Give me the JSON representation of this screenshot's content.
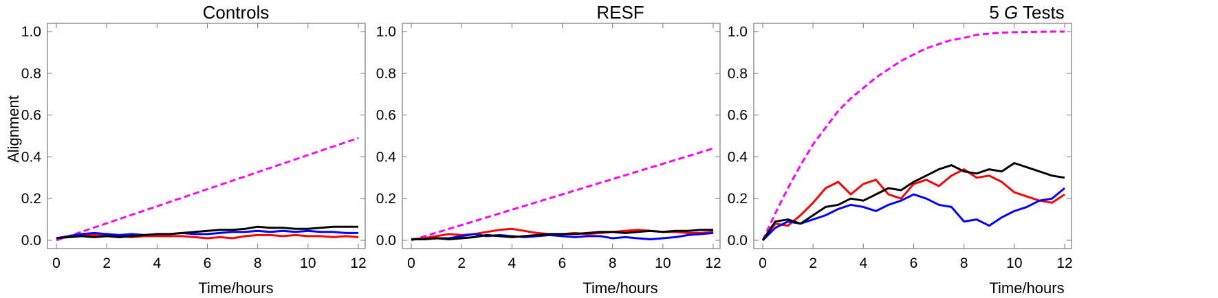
{
  "chart_data": [
    {
      "type": "line",
      "title": "Controls",
      "title_italic": "",
      "title_suffix": "",
      "xlabel": "Time/hours",
      "ylabel": "Alignment",
      "xlim": [
        0,
        12
      ],
      "ylim": [
        0,
        1.05
      ],
      "xticks": [
        0,
        2,
        4,
        6,
        8,
        10,
        12
      ],
      "yticks": [
        "0.0",
        "0.2",
        "0.4",
        "0.6",
        "0.8",
        "1.0"
      ],
      "grid": false,
      "series": [
        {
          "color": "#ff00ff",
          "style": "dashed",
          "x": [
            0,
            12
          ],
          "y": [
            0,
            0.49
          ]
        },
        {
          "color": "#ff0000",
          "style": "solid",
          "x": [
            0,
            0.5,
            1,
            1.5,
            2,
            2.5,
            3,
            3.5,
            4,
            4.5,
            5,
            5.5,
            6,
            6.5,
            7,
            7.5,
            8,
            8.5,
            9,
            9.5,
            10,
            10.5,
            11,
            11.5,
            12
          ],
          "y": [
            0.01,
            0.02,
            0.02,
            0.025,
            0.02,
            0.02,
            0.015,
            0.02,
            0.02,
            0.02,
            0.02,
            0.015,
            0.01,
            0.015,
            0.01,
            0.02,
            0.025,
            0.025,
            0.02,
            0.025,
            0.02,
            0.02,
            0.015,
            0.02,
            0.015
          ]
        },
        {
          "color": "#0000ff",
          "style": "solid",
          "x": [
            0,
            0.5,
            1,
            1.5,
            2,
            2.5,
            3,
            3.5,
            4,
            4.5,
            5,
            5.5,
            6,
            6.5,
            7,
            7.5,
            8,
            8.5,
            9,
            9.5,
            10,
            10.5,
            11,
            11.5,
            12
          ],
          "y": [
            0.01,
            0.02,
            0.03,
            0.035,
            0.03,
            0.025,
            0.03,
            0.025,
            0.03,
            0.03,
            0.035,
            0.03,
            0.03,
            0.035,
            0.04,
            0.04,
            0.045,
            0.04,
            0.045,
            0.04,
            0.045,
            0.04,
            0.04,
            0.035,
            0.035
          ]
        },
        {
          "color": "#000000",
          "style": "solid",
          "x": [
            0,
            0.5,
            1,
            1.5,
            2,
            2.5,
            3,
            3.5,
            4,
            4.5,
            5,
            5.5,
            6,
            6.5,
            7,
            7.5,
            8,
            8.5,
            9,
            9.5,
            10,
            10.5,
            11,
            11.5,
            12
          ],
          "y": [
            0.01,
            0.015,
            0.02,
            0.015,
            0.02,
            0.015,
            0.02,
            0.025,
            0.03,
            0.03,
            0.035,
            0.04,
            0.045,
            0.05,
            0.05,
            0.055,
            0.065,
            0.06,
            0.06,
            0.055,
            0.055,
            0.06,
            0.065,
            0.065,
            0.065
          ]
        }
      ]
    },
    {
      "type": "line",
      "title": "RESF",
      "title_italic": "",
      "title_suffix": "",
      "xlabel": "Time/hours",
      "ylabel": "",
      "xlim": [
        0,
        12
      ],
      "ylim": [
        0,
        1.05
      ],
      "xticks": [
        0,
        2,
        4,
        6,
        8,
        10,
        12
      ],
      "yticks": [
        "0.0",
        "0.2",
        "0.4",
        "0.6",
        "0.8",
        "1.0"
      ],
      "grid": false,
      "series": [
        {
          "color": "#ff00ff",
          "style": "dashed",
          "x": [
            0,
            12
          ],
          "y": [
            0,
            0.44
          ]
        },
        {
          "color": "#ff0000",
          "style": "solid",
          "x": [
            0,
            0.5,
            1,
            1.5,
            2,
            2.5,
            3,
            3.5,
            4,
            4.5,
            5,
            5.5,
            6,
            6.5,
            7,
            7.5,
            8,
            8.5,
            9,
            9.5,
            10,
            10.5,
            11,
            11.5,
            12
          ],
          "y": [
            0.005,
            0.01,
            0.02,
            0.03,
            0.025,
            0.03,
            0.04,
            0.05,
            0.055,
            0.045,
            0.035,
            0.03,
            0.03,
            0.035,
            0.03,
            0.035,
            0.04,
            0.045,
            0.05,
            0.045,
            0.04,
            0.04,
            0.035,
            0.035,
            0.04
          ]
        },
        {
          "color": "#0000ff",
          "style": "solid",
          "x": [
            0,
            0.5,
            1,
            1.5,
            2,
            2.5,
            3,
            3.5,
            4,
            4.5,
            5,
            5.5,
            6,
            6.5,
            7,
            7.5,
            8,
            8.5,
            9,
            9.5,
            10,
            10.5,
            11,
            11.5,
            12
          ],
          "y": [
            0.005,
            0.005,
            0.01,
            0.01,
            0.02,
            0.03,
            0.02,
            0.025,
            0.02,
            0.015,
            0.02,
            0.025,
            0.02,
            0.015,
            0.02,
            0.02,
            0.01,
            0.015,
            0.01,
            0.005,
            0.01,
            0.015,
            0.025,
            0.03,
            0.035
          ]
        },
        {
          "color": "#000000",
          "style": "solid",
          "x": [
            0,
            0.5,
            1,
            1.5,
            2,
            2.5,
            3,
            3.5,
            4,
            4.5,
            5,
            5.5,
            6,
            6.5,
            7,
            7.5,
            8,
            8.5,
            9,
            9.5,
            10,
            10.5,
            11,
            11.5,
            12
          ],
          "y": [
            0.005,
            0.005,
            0.01,
            0.005,
            0.01,
            0.015,
            0.025,
            0.02,
            0.015,
            0.02,
            0.025,
            0.03,
            0.03,
            0.03,
            0.035,
            0.04,
            0.04,
            0.035,
            0.04,
            0.045,
            0.04,
            0.045,
            0.045,
            0.05,
            0.05
          ]
        }
      ]
    },
    {
      "type": "line",
      "title": "5 ",
      "title_italic": "G",
      "title_suffix": " Tests",
      "xlabel": "Time/hours",
      "ylabel": "",
      "xlim": [
        0,
        12
      ],
      "ylim": [
        0,
        1.05
      ],
      "xticks": [
        0,
        2,
        4,
        6,
        8,
        10,
        12
      ],
      "yticks": [
        "0.0",
        "0.2",
        "0.4",
        "0.6",
        "0.8",
        "1.0"
      ],
      "grid": false,
      "series": [
        {
          "color": "#ff00ff",
          "style": "dashed",
          "x": [
            0,
            0.5,
            1,
            1.5,
            2,
            2.5,
            3,
            3.5,
            4,
            4.5,
            5,
            5.5,
            6,
            6.5,
            7,
            7.5,
            8,
            8.5,
            9,
            9.5,
            10,
            10.5,
            11,
            11.5,
            12
          ],
          "y": [
            0,
            0.13,
            0.25,
            0.36,
            0.46,
            0.54,
            0.62,
            0.68,
            0.73,
            0.78,
            0.82,
            0.86,
            0.89,
            0.92,
            0.94,
            0.96,
            0.97,
            0.985,
            0.99,
            0.995,
            0.997,
            0.998,
            0.999,
            1.0,
            1.0
          ]
        },
        {
          "color": "#ff0000",
          "style": "solid",
          "x": [
            0,
            0.5,
            1,
            1.5,
            2,
            2.5,
            3,
            3.5,
            4,
            4.5,
            5,
            5.5,
            6,
            6.5,
            7,
            7.5,
            8,
            8.5,
            9,
            9.5,
            10,
            10.5,
            11,
            11.5,
            12
          ],
          "y": [
            0,
            0.08,
            0.07,
            0.12,
            0.18,
            0.25,
            0.28,
            0.22,
            0.27,
            0.29,
            0.22,
            0.2,
            0.27,
            0.29,
            0.26,
            0.31,
            0.34,
            0.3,
            0.31,
            0.28,
            0.23,
            0.21,
            0.19,
            0.18,
            0.22
          ]
        },
        {
          "color": "#0000ff",
          "style": "solid",
          "x": [
            0,
            0.5,
            1,
            1.5,
            2,
            2.5,
            3,
            3.5,
            4,
            4.5,
            5,
            5.5,
            6,
            6.5,
            7,
            7.5,
            8,
            8.5,
            9,
            9.5,
            10,
            10.5,
            11,
            11.5,
            12
          ],
          "y": [
            0,
            0.06,
            0.09,
            0.08,
            0.1,
            0.12,
            0.15,
            0.17,
            0.16,
            0.14,
            0.17,
            0.19,
            0.22,
            0.2,
            0.17,
            0.16,
            0.09,
            0.1,
            0.07,
            0.11,
            0.14,
            0.16,
            0.19,
            0.2,
            0.25
          ]
        },
        {
          "color": "#000000",
          "style": "solid",
          "x": [
            0,
            0.5,
            1,
            1.5,
            2,
            2.5,
            3,
            3.5,
            4,
            4.5,
            5,
            5.5,
            6,
            6.5,
            7,
            7.5,
            8,
            8.5,
            9,
            9.5,
            10,
            10.5,
            11,
            11.5,
            12
          ],
          "y": [
            0,
            0.09,
            0.1,
            0.08,
            0.12,
            0.16,
            0.17,
            0.2,
            0.19,
            0.22,
            0.25,
            0.24,
            0.28,
            0.31,
            0.34,
            0.36,
            0.33,
            0.32,
            0.34,
            0.33,
            0.37,
            0.35,
            0.33,
            0.31,
            0.3
          ]
        }
      ]
    }
  ]
}
